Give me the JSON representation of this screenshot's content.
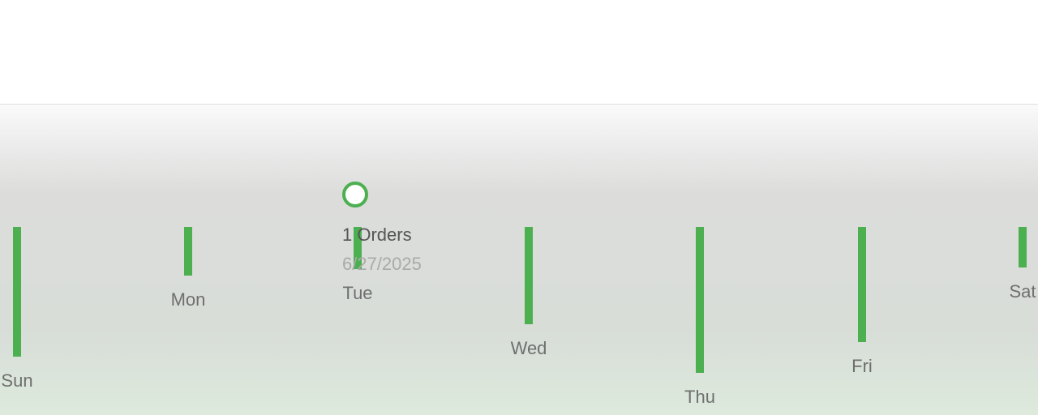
{
  "chart_data": {
    "type": "bar",
    "categories": [
      "Sun",
      "Mon",
      "Tue",
      "Wed",
      "Thu",
      "Fri",
      "Sat"
    ],
    "values": [
      8,
      3,
      2.6,
      6,
      9,
      7.1,
      2.5
    ],
    "ylim": [
      0,
      10
    ],
    "grid": false,
    "colors": {
      "bar": "#4caf50",
      "marker": "#4caf50"
    },
    "tooltip": {
      "category": "Tue",
      "count_text": "1 Orders",
      "date_text": "6/27/2025"
    }
  }
}
